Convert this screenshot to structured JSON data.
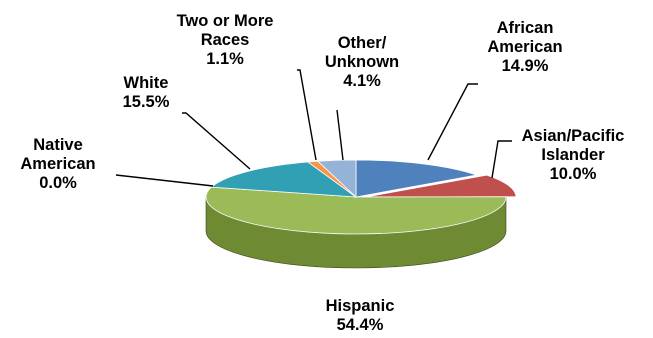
{
  "chart_data": {
    "type": "pie",
    "style": "3d",
    "slices": [
      {
        "label": "African American",
        "label_lines": [
          "African",
          "American"
        ],
        "value_text": "14.9%",
        "value": 14.9,
        "color": "#4f81bd",
        "side_color": "#2e5889"
      },
      {
        "label": "Asian/Pacific Islander",
        "label_lines": [
          "Asian/Pacific",
          "Islander"
        ],
        "value_text": "10.0%",
        "value": 10.0,
        "color": "#c0504d",
        "side_color": "#8c3331"
      },
      {
        "label": "Hispanic",
        "label_lines": [
          "Hispanic"
        ],
        "value_text": "54.4%",
        "value": 54.4,
        "color": "#9bbb59",
        "side_color": "#6e8a33"
      },
      {
        "label": "Native American",
        "label_lines": [
          "Native",
          "American"
        ],
        "value_text": "0.0%",
        "value": 0.0,
        "color": "#8064a2",
        "side_color": "#5a4579"
      },
      {
        "label": "White",
        "label_lines": [
          "White"
        ],
        "value_text": "15.5%",
        "value": 15.5,
        "color": "#31a0b5",
        "side_color": "#1f6e7e"
      },
      {
        "label": "Two or More Races",
        "label_lines": [
          "Two or More",
          "Races"
        ],
        "value_text": "1.1%",
        "value": 1.1,
        "color": "#f79646",
        "side_color": "#b8661f"
      },
      {
        "label": "Other/ Unknown",
        "label_lines": [
          "Other/",
          "Unknown"
        ],
        "value_text": "4.1%",
        "value": 4.1,
        "color": "#95b3d7",
        "side_color": "#6b8bb3"
      }
    ],
    "legend": "none",
    "title": ""
  }
}
